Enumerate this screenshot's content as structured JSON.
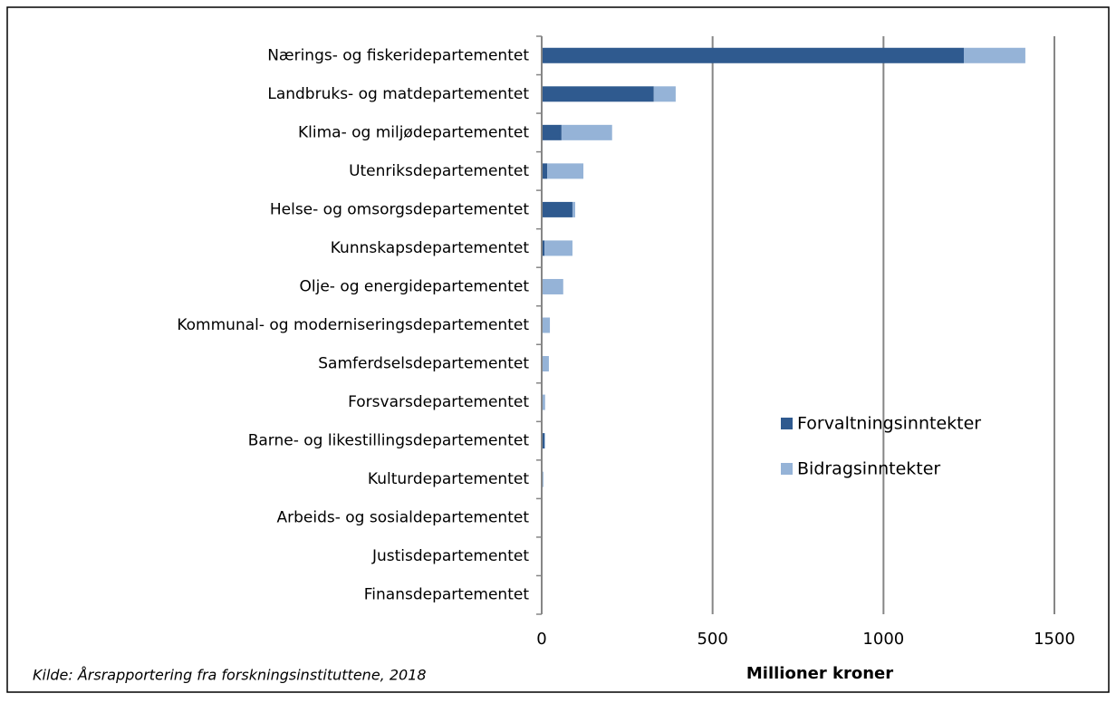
{
  "chart_data": {
    "type": "stacked_barh",
    "categories": [
      "Nærings- og fiskeridepartementet",
      "Landbruks- og matdepartementet",
      "Klima- og miljødepartementet",
      "Utenriksdepartementet",
      "Helse- og omsorgsdepartementet",
      "Kunnskapsdepartementet",
      "Olje- og energidepartementet",
      "Kommunal- og moderniseringsdepartementet",
      "Samferdselsdepartementet",
      "Forsvarsdepartementet",
      "Barne- og likestillingsdepartementet",
      "Kulturdepartementet",
      "Arbeids- og sosialdepartementet",
      "Justisdepartementet",
      "Finansdepartementet"
    ],
    "series": [
      {
        "name": "Forvaltningsinntekter",
        "color": "#2f5a8f",
        "values": [
          1235,
          328,
          58,
          16,
          90,
          8,
          0,
          0,
          0,
          0,
          8,
          0,
          0,
          0,
          0
        ]
      },
      {
        "name": "Bidragsinntekter",
        "color": "#95b3d7",
        "values": [
          180,
          64,
          148,
          106,
          8,
          82,
          63,
          24,
          21,
          10,
          2,
          5,
          0,
          0,
          0
        ]
      }
    ],
    "xlabel": "Millioner kroner",
    "xlim": [
      0,
      1500
    ],
    "xticks": [
      0,
      500,
      1000,
      1500
    ],
    "grid": true,
    "legend": "center right",
    "source": "Kilde: Årsrapportering fra forskningsinstituttene, 2018"
  }
}
